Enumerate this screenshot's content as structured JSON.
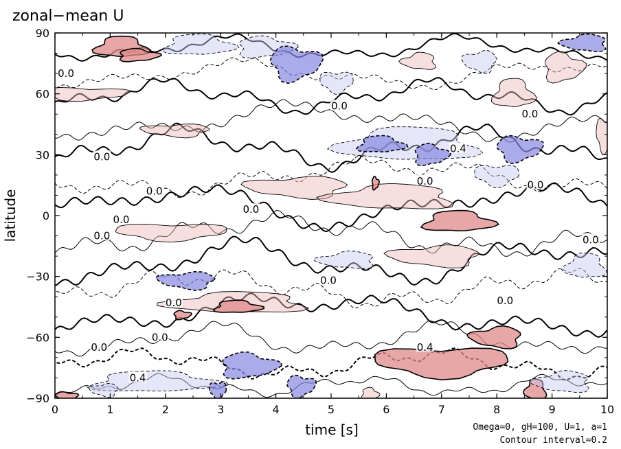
{
  "chart_data": {
    "type": "contour",
    "title": "zonal−mean U",
    "xlabel": "time [s]",
    "ylabel": "latitude",
    "xlim": [
      0,
      10
    ],
    "ylim": [
      -90,
      90
    ],
    "xticks": [
      "0",
      "1",
      "2",
      "3",
      "4",
      "5",
      "6",
      "7",
      "8",
      "9",
      "10"
    ],
    "yticks": [
      "−90",
      "−60",
      "−30",
      "0",
      "30",
      "60",
      "90"
    ],
    "annotations": [
      "Omega=0, gH=100, U=1, a=1",
      "Contour interval=0.2"
    ],
    "contour_labels": [
      {
        "text": "0.0",
        "x": 0.2,
        "y": 70
      },
      {
        "text": "0.0",
        "x": 5.15,
        "y": 54
      },
      {
        "text": "0.0",
        "x": 8.6,
        "y": 50
      },
      {
        "text": "0.0",
        "x": 0.85,
        "y": 29
      },
      {
        "text": "0.0",
        "x": 1.8,
        "y": 12
      },
      {
        "text": "0.0",
        "x": 6.7,
        "y": 17
      },
      {
        "text": "0.0",
        "x": 8.7,
        "y": 15
      },
      {
        "text": "0.0",
        "x": 3.55,
        "y": 3
      },
      {
        "text": "0.0",
        "x": 1.2,
        "y": -2
      },
      {
        "text": "0.0",
        "x": 0.85,
        "y": -10
      },
      {
        "text": "0.0",
        "x": 9.7,
        "y": -12
      },
      {
        "text": "0.0",
        "x": 4.95,
        "y": -32
      },
      {
        "text": "0.0",
        "x": 2.15,
        "y": -43
      },
      {
        "text": "0.0",
        "x": 8.15,
        "y": -42
      },
      {
        "text": "0.0",
        "x": 1.9,
        "y": -60
      },
      {
        "text": "0.0",
        "x": 0.8,
        "y": -65
      },
      {
        "text": "0.4",
        "x": 7.3,
        "y": 33
      },
      {
        "text": "0.4",
        "x": 6.7,
        "y": -65
      },
      {
        "text": "0.4",
        "x": 1.5,
        "y": -80
      }
    ],
    "colors": {
      "positive": "#f0b8b8",
      "positive_strong": "#e08a8a",
      "negative": "#c8c8f4",
      "negative_strong": "#8888e0"
    },
    "positive_regions": [
      {
        "x": 1.2,
        "y": 83,
        "rx": 0.45,
        "ry": 5,
        "level": 0.6
      },
      {
        "x": 1.5,
        "y": 79,
        "rx": 0.35,
        "ry": 3,
        "level": 0.4
      },
      {
        "x": 0.5,
        "y": 60,
        "rx": 0.8,
        "ry": 3,
        "level": 0.2
      },
      {
        "x": 2.2,
        "y": 42,
        "rx": 0.6,
        "ry": 3,
        "level": 0.2
      },
      {
        "x": 6.6,
        "y": 76,
        "rx": 0.3,
        "ry": 4,
        "level": 0.2
      },
      {
        "x": 8.3,
        "y": 60,
        "rx": 0.35,
        "ry": 7,
        "level": 0.2
      },
      {
        "x": 9.2,
        "y": 73,
        "rx": 0.35,
        "ry": 7,
        "level": 0.2
      },
      {
        "x": 9.95,
        "y": 40,
        "rx": 0.15,
        "ry": 8,
        "level": 0.2
      },
      {
        "x": 4.4,
        "y": 14,
        "rx": 0.9,
        "ry": 5,
        "level": 0.2
      },
      {
        "x": 6.1,
        "y": 9,
        "rx": 1.1,
        "ry": 6,
        "level": 0.2
      },
      {
        "x": 7.3,
        "y": -3,
        "rx": 0.6,
        "ry": 5,
        "level": 0.4
      },
      {
        "x": 5.8,
        "y": 16,
        "rx": 0.06,
        "ry": 3,
        "level": 0.4
      },
      {
        "x": 2.1,
        "y": -8,
        "rx": 1.0,
        "ry": 4,
        "level": 0.2
      },
      {
        "x": 6.9,
        "y": -20,
        "rx": 0.8,
        "ry": 5,
        "level": 0.2
      },
      {
        "x": 3.3,
        "y": -43,
        "rx": 1.2,
        "ry": 5,
        "level": 0.2
      },
      {
        "x": 3.3,
        "y": -45,
        "rx": 0.4,
        "ry": 3,
        "level": 0.4
      },
      {
        "x": 2.3,
        "y": -49,
        "rx": 0.15,
        "ry": 2,
        "level": 0.4
      },
      {
        "x": 7.0,
        "y": -72,
        "rx": 1.2,
        "ry": 7,
        "level": 0.4
      },
      {
        "x": 8.0,
        "y": -60,
        "rx": 0.45,
        "ry": 5,
        "level": 0.4
      },
      {
        "x": 8.7,
        "y": -86,
        "rx": 0.18,
        "ry": 5,
        "level": 0.6
      },
      {
        "x": 5.7,
        "y": -88,
        "rx": 0.15,
        "ry": 3,
        "level": 0.2
      },
      {
        "x": 0.2,
        "y": -89,
        "rx": 0.2,
        "ry": 2,
        "level": 0.4
      }
    ],
    "negative_regions": [
      {
        "x": 2.6,
        "y": 84,
        "rx": 0.6,
        "ry": 5,
        "level": -0.2
      },
      {
        "x": 3.8,
        "y": 83,
        "rx": 0.5,
        "ry": 5,
        "level": -0.2
      },
      {
        "x": 4.35,
        "y": 75,
        "rx": 0.45,
        "ry": 8,
        "level": -0.4
      },
      {
        "x": 5.1,
        "y": 66,
        "rx": 0.3,
        "ry": 5,
        "level": -0.2
      },
      {
        "x": 7.7,
        "y": 76,
        "rx": 0.3,
        "ry": 5,
        "level": -0.2
      },
      {
        "x": 9.6,
        "y": 85,
        "rx": 0.4,
        "ry": 4,
        "level": -0.4
      },
      {
        "x": 6.4,
        "y": 35,
        "rx": 1.2,
        "ry": 8,
        "level": -0.2
      },
      {
        "x": 5.9,
        "y": 35,
        "rx": 0.4,
        "ry": 4,
        "level": -0.4
      },
      {
        "x": 6.8,
        "y": 30,
        "rx": 0.3,
        "ry": 5,
        "level": -0.4
      },
      {
        "x": 8.4,
        "y": 33,
        "rx": 0.4,
        "ry": 6,
        "level": -0.4
      },
      {
        "x": 8.0,
        "y": 20,
        "rx": 0.4,
        "ry": 5,
        "level": -0.2
      },
      {
        "x": 2.4,
        "y": -32,
        "rx": 0.5,
        "ry": 4,
        "level": -0.4
      },
      {
        "x": 5.3,
        "y": -22,
        "rx": 0.5,
        "ry": 4,
        "level": -0.2
      },
      {
        "x": 9.6,
        "y": -25,
        "rx": 0.35,
        "ry": 6,
        "level": -0.2
      },
      {
        "x": 1.8,
        "y": -82,
        "rx": 1.1,
        "ry": 5,
        "level": -0.2
      },
      {
        "x": 3.5,
        "y": -74,
        "rx": 0.5,
        "ry": 6,
        "level": -0.4
      },
      {
        "x": 4.45,
        "y": -84,
        "rx": 0.25,
        "ry": 5,
        "level": -0.4
      },
      {
        "x": 2.95,
        "y": -86,
        "rx": 0.15,
        "ry": 4,
        "level": -0.4
      },
      {
        "x": 0.9,
        "y": -86,
        "rx": 0.25,
        "ry": 3,
        "level": -0.2
      },
      {
        "x": 9.2,
        "y": -82,
        "rx": 0.5,
        "ry": 5,
        "level": -0.2
      }
    ]
  }
}
